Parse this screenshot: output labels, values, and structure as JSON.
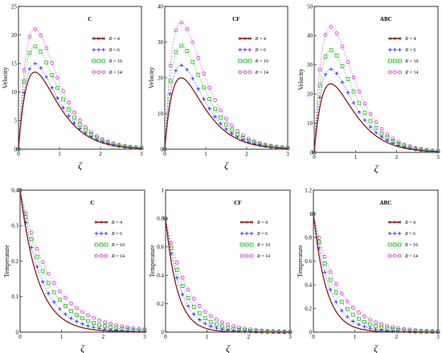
{
  "chart_data": [
    {
      "type": "line",
      "title": "C",
      "xlabel": "ζ",
      "ylabel": "Velocity",
      "xlim": [
        0,
        3
      ],
      "ylim": [
        0,
        25
      ],
      "xticks": [
        "0",
        "1",
        "2",
        "3"
      ],
      "yticks": [
        "0",
        "5",
        "10",
        "15",
        "20",
        "25"
      ],
      "legend_position": "top-right",
      "peak_x": 0.4,
      "shape": "velocity",
      "series": [
        {
          "name": "R = 4",
          "legend": [
            "R",
            " = 4"
          ],
          "peak": 13.5,
          "color": "#8B1A1A",
          "marker": "line"
        },
        {
          "name": "R = 6",
          "legend": [
            "R",
            " = 6"
          ],
          "peak": 15,
          "color": "#1a1aff",
          "marker": "plus"
        },
        {
          "name": "R = 10",
          "legend": [
            "R",
            " = 10"
          ],
          "peak": 18,
          "color": "#00bb00",
          "marker": "square"
        },
        {
          "name": "R = 14",
          "legend": [
            "R",
            " = 14"
          ],
          "peak": 21,
          "color": "#d020d0",
          "marker": "circle"
        }
      ]
    },
    {
      "type": "line",
      "title": "CF",
      "xlabel": "ζ",
      "ylabel": "Velocity",
      "xlim": [
        0,
        3
      ],
      "ylim": [
        0,
        40
      ],
      "xticks": [
        "0",
        "1",
        "2",
        "3"
      ],
      "yticks": [
        "0",
        "10",
        "20",
        "30",
        "40"
      ],
      "legend_position": "top-right",
      "peak_x": 0.4,
      "shape": "velocity",
      "series": [
        {
          "name": "R = 4",
          "legend": [
            "R",
            " = 4"
          ],
          "peak": 20,
          "color": "#8B1A1A",
          "marker": "line"
        },
        {
          "name": "R = 6",
          "legend": [
            "R",
            " = 6"
          ],
          "peak": 23.5,
          "color": "#1a1aff",
          "marker": "plus"
        },
        {
          "name": "R = 10",
          "legend": [
            "R",
            " = 10"
          ],
          "peak": 29,
          "color": "#00bb00",
          "marker": "square"
        },
        {
          "name": "R = 14",
          "legend": [
            "R",
            " = 14"
          ],
          "peak": 35.5,
          "color": "#d020d0",
          "marker": "circle"
        }
      ]
    },
    {
      "type": "line",
      "title": "ABC",
      "xlabel": "ζ",
      "ylabel": "Velocity",
      "xlim": [
        0,
        3
      ],
      "ylim": [
        0,
        50
      ],
      "xticks": [
        "0",
        "1",
        "2",
        "3"
      ],
      "yticks": [
        "0",
        "10",
        "20",
        "30",
        "40",
        "50"
      ],
      "legend_position": "top-right",
      "peak_x": 0.4,
      "shape": "velocity",
      "series": [
        {
          "name": "R = 4",
          "legend": [
            "R",
            " = 4"
          ],
          "peak": 23.5,
          "color": "#8B1A1A",
          "marker": "line"
        },
        {
          "name": "R = 6",
          "legend": [
            "R",
            " = 6"
          ],
          "peak": 28.5,
          "color": "#1a1aff",
          "marker": "plus"
        },
        {
          "name": "R = 10",
          "legend": [
            "R",
            " = 10"
          ],
          "peak": 35,
          "color": "#00bb00",
          "marker": "square"
        },
        {
          "name": "R = 14",
          "legend": [
            "R",
            " = 14"
          ],
          "peak": 43,
          "color": "#d020d0",
          "marker": "circle"
        }
      ]
    },
    {
      "type": "line",
      "title": "C",
      "xlabel": "ζ",
      "ylabel": "Temperature",
      "xlim": [
        0,
        3
      ],
      "ylim": [
        0,
        0.4
      ],
      "xticks": [
        "0",
        "1",
        "2",
        "3"
      ],
      "yticks": [
        "0",
        "0.1",
        "0.2",
        "0.3",
        "0.4"
      ],
      "legend_position": "top-right",
      "start_value": 0.4,
      "shape": "temperature",
      "series": [
        {
          "name": "R = 4",
          "legend": [
            "R",
            " = 4"
          ],
          "decay": 2.3,
          "color": "#8B1A1A",
          "marker": "line"
        },
        {
          "name": "R = 6",
          "legend": [
            "R",
            " = 6"
          ],
          "decay": 1.9,
          "color": "#1a1aff",
          "marker": "plus"
        },
        {
          "name": "R = 10",
          "legend": [
            "R",
            " = 10"
          ],
          "decay": 1.55,
          "color": "#00bb00",
          "marker": "square"
        },
        {
          "name": "R = 14",
          "legend": [
            "R",
            " = 14"
          ],
          "decay": 1.3,
          "color": "#d020d0",
          "marker": "circle"
        }
      ]
    },
    {
      "type": "line",
      "title": "CF",
      "xlabel": "ζ",
      "ylabel": "Temperature",
      "xlim": [
        0,
        3
      ],
      "ylim": [
        0,
        1
      ],
      "xticks": [
        "0",
        "1",
        "2",
        "3"
      ],
      "yticks": [
        "0",
        "0.2",
        "0.4",
        "0.6",
        "0.8",
        "1"
      ],
      "legend_position": "top-right",
      "start_value": 0.8,
      "shape": "temperature",
      "series": [
        {
          "name": "R = 4",
          "legend": [
            "R",
            " = 4"
          ],
          "decay": 3.5,
          "color": "#8B1A1A",
          "marker": "line"
        },
        {
          "name": "R = 6",
          "legend": [
            "R",
            " = 6"
          ],
          "decay": 2.7,
          "color": "#1a1aff",
          "marker": "plus"
        },
        {
          "name": "R = 10",
          "legend": [
            "R",
            " = 10"
          ],
          "decay": 2.2,
          "color": "#00bb00",
          "marker": "square"
        },
        {
          "name": "R = 14",
          "legend": [
            "R",
            " = 14"
          ],
          "decay": 1.8,
          "color": "#d020d0",
          "marker": "circle"
        }
      ]
    },
    {
      "type": "line",
      "title": "ABC",
      "xlabel": "ζ",
      "ylabel": "Temperature",
      "xlim": [
        0,
        3
      ],
      "ylim": [
        0,
        1.2
      ],
      "xticks": [
        "0",
        "1",
        "2",
        "3"
      ],
      "yticks": [
        "0",
        "0.2",
        "0.4",
        "0.6",
        "0.8",
        "1",
        "1.2"
      ],
      "legend_position": "top-right",
      "start_value": 1.0,
      "shape": "temperature",
      "series": [
        {
          "name": "R = 4",
          "legend": [
            "R",
            " = 4"
          ],
          "decay": 3.2,
          "color": "#8B1A1A",
          "marker": "line"
        },
        {
          "name": "R = 6",
          "legend": [
            "R",
            " = 6"
          ],
          "decay": 2.5,
          "color": "#1a1aff",
          "marker": "plus"
        },
        {
          "name": "R = 10",
          "legend": [
            "R",
            " = 10"
          ],
          "decay": 2.0,
          "color": "#00bb00",
          "marker": "square"
        },
        {
          "name": "R = 14",
          "legend": [
            "R",
            " = 14"
          ],
          "decay": 1.65,
          "color": "#d020d0",
          "marker": "circle"
        }
      ]
    }
  ]
}
